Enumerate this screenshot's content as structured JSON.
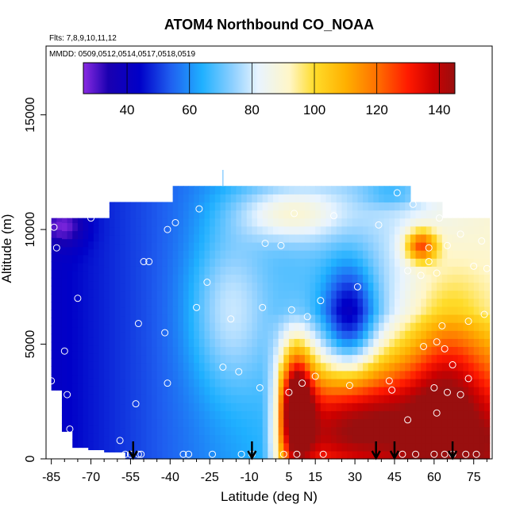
{
  "chart_data": {
    "type": "heatmap",
    "title": "ATOM4 Northbound CO_NOAA",
    "subtitle_flights": "Flts: 7,8,9,10,11,12",
    "subtitle_dates": "MMDD: 0509,0512,0514,0517,0518,0519",
    "xlabel": "Latitude (deg N)",
    "ylabel": "Altitude (m)",
    "xlim": [
      -87,
      82
    ],
    "ylim": [
      0,
      18000
    ],
    "x_ticks": [
      -85,
      -70,
      -55,
      -40,
      -25,
      -10,
      5,
      15,
      30,
      45,
      60,
      75
    ],
    "y_ticks": [
      0,
      5000,
      10000,
      15000
    ],
    "colorbar": {
      "range": [
        26,
        145
      ],
      "ticks": [
        40,
        60,
        80,
        100,
        120,
        140
      ],
      "stops": [
        {
          "v": 26,
          "c": "#8a2be2"
        },
        {
          "v": 34,
          "c": "#1a00b0"
        },
        {
          "v": 44,
          "c": "#0000c8"
        },
        {
          "v": 54,
          "c": "#1f5ff0"
        },
        {
          "v": 64,
          "c": "#1fb0ff"
        },
        {
          "v": 74,
          "c": "#8fd0ff"
        },
        {
          "v": 82,
          "c": "#e8f4ff"
        },
        {
          "v": 92,
          "c": "#fff6c8"
        },
        {
          "v": 100,
          "c": "#ffdc2a"
        },
        {
          "v": 110,
          "c": "#ffb000"
        },
        {
          "v": 120,
          "c": "#ff7000"
        },
        {
          "v": 130,
          "c": "#ff1a00"
        },
        {
          "v": 138,
          "c": "#cc0000"
        },
        {
          "v": 145,
          "c": "#990f0f"
        }
      ]
    },
    "arrows_latitude": [
      -54,
      -9,
      38,
      45,
      67
    ],
    "observations": [
      [
        -85,
        3400
      ],
      [
        -84,
        10100
      ],
      [
        -83,
        9200
      ],
      [
        -80,
        4700
      ],
      [
        -79,
        2800
      ],
      [
        -78,
        1300
      ],
      [
        -75,
        7000
      ],
      [
        -70,
        10500
      ],
      [
        -59,
        800
      ],
      [
        -57,
        200
      ],
      [
        -55,
        200
      ],
      [
        -53,
        2400
      ],
      [
        -52,
        5900
      ],
      [
        -52,
        200
      ],
      [
        -51,
        200
      ],
      [
        -48,
        8600
      ],
      [
        -50,
        8600
      ],
      [
        -42,
        5500
      ],
      [
        -41,
        3300
      ],
      [
        -41,
        10000
      ],
      [
        -38,
        10300
      ],
      [
        -35,
        200
      ],
      [
        -33,
        200
      ],
      [
        -30,
        6600
      ],
      [
        -29,
        10900
      ],
      [
        -26,
        7700
      ],
      [
        -24,
        200
      ],
      [
        -20,
        4000
      ],
      [
        -17,
        6100
      ],
      [
        -14,
        3800
      ],
      [
        -13,
        200
      ],
      [
        -9,
        200
      ],
      [
        -6,
        3100
      ],
      [
        -5,
        6600
      ],
      [
        -4,
        9400
      ],
      [
        2,
        9300
      ],
      [
        3,
        200
      ],
      [
        5,
        2900
      ],
      [
        6,
        6500
      ],
      [
        7,
        10700
      ],
      [
        8,
        200
      ],
      [
        10,
        3300
      ],
      [
        12,
        6200
      ],
      [
        15,
        3600
      ],
      [
        17,
        6900
      ],
      [
        18,
        200
      ],
      [
        22,
        10600
      ],
      [
        28,
        3200
      ],
      [
        31,
        7500
      ],
      [
        39,
        10200
      ],
      [
        43,
        3400
      ],
      [
        44,
        3000
      ],
      [
        46,
        11600
      ],
      [
        48,
        200
      ],
      [
        50,
        8200
      ],
      [
        50,
        1700
      ],
      [
        52,
        11100
      ],
      [
        53,
        200
      ],
      [
        55,
        8000
      ],
      [
        56,
        4900
      ],
      [
        58,
        8600
      ],
      [
        58,
        9200
      ],
      [
        60,
        3100
      ],
      [
        60,
        200
      ],
      [
        61,
        5100
      ],
      [
        61,
        2000
      ],
      [
        61,
        8100
      ],
      [
        62,
        10500
      ],
      [
        63,
        5800
      ],
      [
        64,
        4800
      ],
      [
        64,
        200
      ],
      [
        65,
        9300
      ],
      [
        65,
        2900
      ],
      [
        67,
        4100
      ],
      [
        67,
        200
      ],
      [
        70,
        9800
      ],
      [
        70,
        2800
      ],
      [
        72,
        200
      ],
      [
        73,
        6000
      ],
      [
        73,
        3500
      ],
      [
        75,
        8400
      ],
      [
        76,
        200
      ],
      [
        78,
        9500
      ],
      [
        79,
        6300
      ],
      [
        80,
        8300
      ]
    ]
  }
}
